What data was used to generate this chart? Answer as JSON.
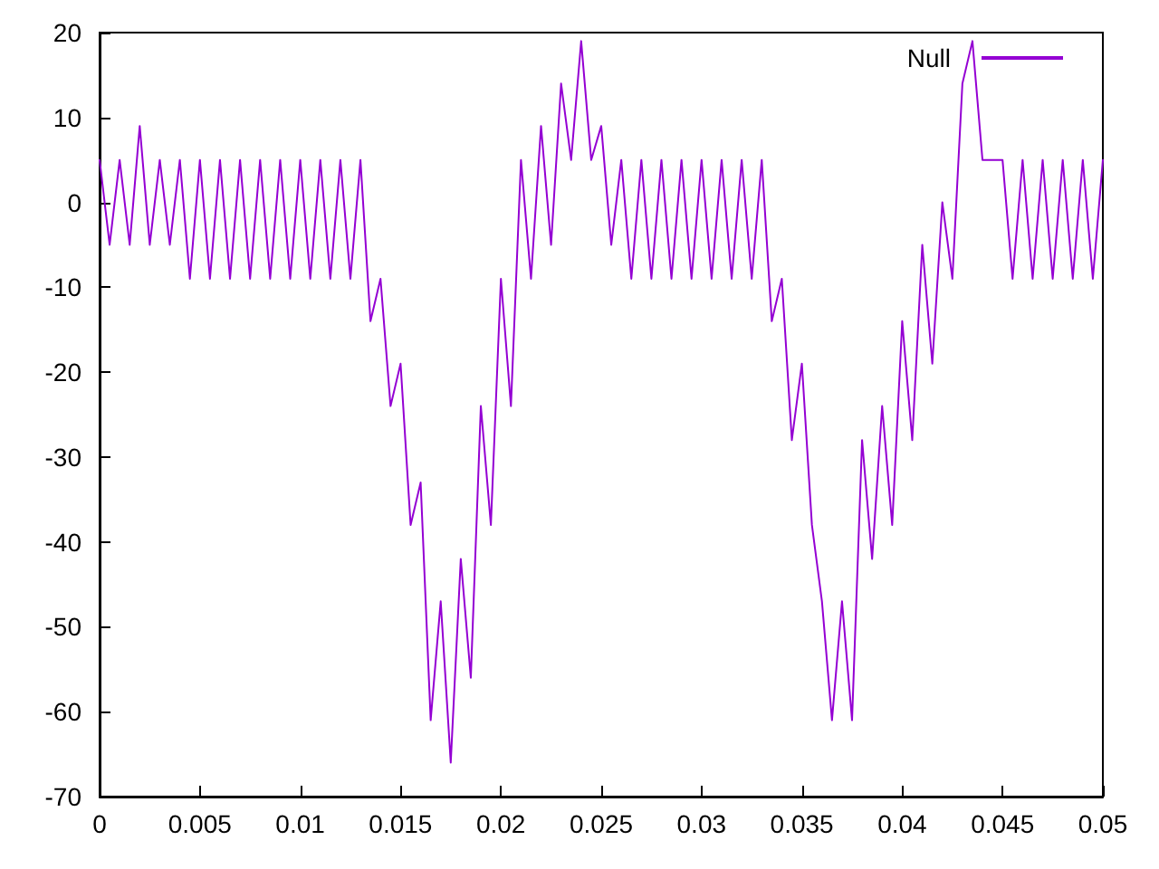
{
  "chart_data": {
    "type": "line",
    "x": [
      0,
      0.0005,
      0.001,
      0.0015,
      0.002,
      0.0025,
      0.003,
      0.0035,
      0.004,
      0.0045,
      0.005,
      0.0055,
      0.006,
      0.0065,
      0.007,
      0.0075,
      0.008,
      0.0085,
      0.009,
      0.0095,
      0.01,
      0.0105,
      0.011,
      0.0115,
      0.012,
      0.0125,
      0.013,
      0.0135,
      0.014,
      0.0145,
      0.015,
      0.0155,
      0.016,
      0.0165,
      0.017,
      0.0175,
      0.018,
      0.0185,
      0.019,
      0.0195,
      0.02,
      0.0205,
      0.021,
      0.0215,
      0.022,
      0.0225,
      0.023,
      0.0235,
      0.024,
      0.0245,
      0.025,
      0.0255,
      0.026,
      0.0265,
      0.027,
      0.0275,
      0.028,
      0.0285,
      0.029,
      0.0295,
      0.03,
      0.0305,
      0.031,
      0.0315,
      0.032,
      0.0325,
      0.033,
      0.0335,
      0.034,
      0.0345,
      0.035,
      0.0355,
      0.036,
      0.0365,
      0.037,
      0.0375,
      0.038,
      0.0385,
      0.039,
      0.0395,
      0.04,
      0.0405,
      0.041,
      0.0415,
      0.042,
      0.0425,
      0.043,
      0.0435,
      0.044,
      0.0445,
      0.045,
      0.0455,
      0.046,
      0.0465,
      0.047,
      0.0475,
      0.048,
      0.0485,
      0.049,
      0.0495,
      0.05
    ],
    "series": [
      {
        "name": "Null",
        "color": "#9400d3",
        "values": [
          5,
          -5,
          5,
          -5,
          9,
          -5,
          5,
          -5,
          5,
          -9,
          5,
          -9,
          5,
          -9,
          5,
          -9,
          5,
          -9,
          5,
          -9,
          5,
          -9,
          5,
          -9,
          5,
          -9,
          5,
          -14,
          -9,
          -24,
          -19,
          -38,
          -33,
          -61,
          -47,
          -66,
          -42,
          -56,
          -24,
          -38,
          -9,
          -24,
          5,
          -9,
          9,
          -5,
          14,
          5,
          19,
          5,
          9,
          -5,
          5,
          -9,
          5,
          -9,
          5,
          -9,
          5,
          -9,
          5,
          -9,
          5,
          -9,
          5,
          -9,
          5,
          -14,
          -9,
          -28,
          -19,
          -38,
          -47,
          -61,
          -47,
          -61,
          -28,
          -42,
          -24,
          -38,
          -14,
          -28,
          -5,
          -19,
          0,
          -9,
          14,
          19,
          5,
          5,
          5,
          -9,
          5,
          -9,
          5,
          -9,
          5,
          -9,
          5,
          -9,
          5
        ]
      }
    ],
    "xlim": [
      0,
      0.05
    ],
    "xticks": [
      0,
      0.005,
      0.01,
      0.015,
      0.02,
      0.025,
      0.03,
      0.035,
      0.04,
      0.045,
      0.05
    ],
    "ylim": [
      -70,
      20
    ],
    "yticks": [
      -70,
      -60,
      -50,
      -40,
      -30,
      -20,
      -10,
      0,
      10,
      20
    ],
    "legend": "top right",
    "marker": "none",
    "line_style": "solid"
  }
}
